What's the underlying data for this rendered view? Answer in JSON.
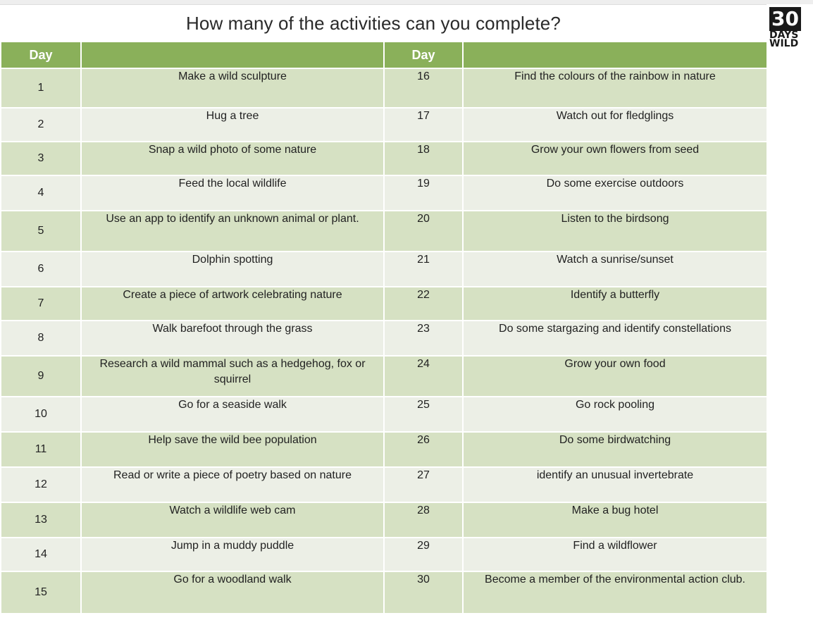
{
  "title": "How many of the activities can you complete?",
  "logo": {
    "number": "30",
    "line1": "DAYS",
    "line2": "WILD"
  },
  "colors": {
    "header": "#8ab05a",
    "row_dark": "#d6e1c3",
    "row_light": "#ecefe6"
  },
  "headers": {
    "day_left": "Day",
    "activity_left": "",
    "day_right": "Day",
    "activity_right": ""
  },
  "rows": [
    {
      "day_left": "1",
      "act_left": "Make a wild sculpture",
      "day_right": "16",
      "act_right": "Find the colours of the rainbow in nature"
    },
    {
      "day_left": "2",
      "act_left": "Hug a tree",
      "day_right": "17",
      "act_right": "Watch out for fledglings"
    },
    {
      "day_left": "3",
      "act_left": "Snap a wild photo of some nature",
      "day_right": "18",
      "act_right": "Grow your own flowers from seed"
    },
    {
      "day_left": "4",
      "act_left": "Feed the local wildlife",
      "day_right": "19",
      "act_right": "Do some exercise outdoors"
    },
    {
      "day_left": "5",
      "act_left": "Use an app to identify an unknown animal or plant.",
      "day_right": "20",
      "act_right": "Listen to the birdsong"
    },
    {
      "day_left": "6",
      "act_left": "Dolphin spotting",
      "day_right": "21",
      "act_right": "Watch a sunrise/sunset"
    },
    {
      "day_left": "7",
      "act_left": "Create a piece of artwork celebrating nature",
      "day_right": "22",
      "act_right": "Identify a butterfly"
    },
    {
      "day_left": "8",
      "act_left": "Walk barefoot through the grass",
      "day_right": "23",
      "act_right": "Do some stargazing and identify constellations"
    },
    {
      "day_left": "9",
      "act_left": "Research a wild mammal such as a hedgehog, fox or squirrel",
      "day_right": "24",
      "act_right": "Grow your own food"
    },
    {
      "day_left": "10",
      "act_left": "Go for a seaside walk",
      "day_right": "25",
      "act_right": "Go rock pooling"
    },
    {
      "day_left": "11",
      "act_left": "Help save the wild bee population",
      "day_right": "26",
      "act_right": "Do some  birdwatching"
    },
    {
      "day_left": "12",
      "act_left": "Read or write a piece of poetry based on nature",
      "day_right": "27",
      "act_right": "identify an unusual invertebrate"
    },
    {
      "day_left": "13",
      "act_left": "Watch a wildlife web cam",
      "day_right": "28",
      "act_right": "Make a bug hotel"
    },
    {
      "day_left": "14",
      "act_left": "Jump in a muddy puddle",
      "day_right": "29",
      "act_right": "Find a wildflower"
    },
    {
      "day_left": "15",
      "act_left": "Go for a woodland walk",
      "day_right": "30",
      "act_right": "Become a member of the environmental action club."
    }
  ]
}
